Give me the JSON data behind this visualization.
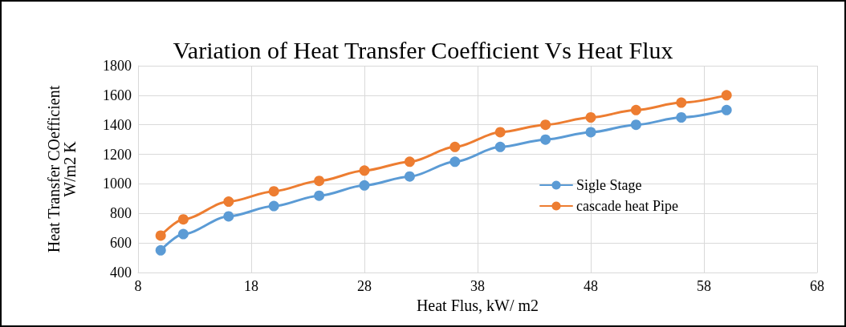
{
  "chart_data": {
    "type": "line",
    "title": "Variation of Heat Transfer Coefficient Vs Heat Flux",
    "xlabel": "Heat Flus, kW/ m2",
    "ylabel": "Heat Transfer COefficient\nW/m2 K",
    "x": [
      10,
      12,
      16,
      20,
      24,
      28,
      32,
      36,
      40,
      44,
      48,
      52,
      56,
      60
    ],
    "series": [
      {
        "name": "Sigle Stage",
        "color": "#5b9bd5",
        "values": [
          550,
          660,
          780,
          850,
          920,
          990,
          1050,
          1150,
          1250,
          1300,
          1350,
          1400,
          1450,
          1500
        ]
      },
      {
        "name": "cascade heat Pipe",
        "color": "#ed7d31",
        "values": [
          650,
          760,
          880,
          950,
          1020,
          1090,
          1150,
          1250,
          1350,
          1400,
          1450,
          1500,
          1550,
          1600
        ]
      }
    ],
    "xlim": [
      8,
      68
    ],
    "xticks": [
      8,
      18,
      28,
      38,
      48,
      58,
      68
    ],
    "ylim": [
      400,
      1800
    ],
    "yticks": [
      400,
      600,
      800,
      1000,
      1200,
      1400,
      1600,
      1800
    ],
    "grid": true,
    "legend": "right",
    "marker": "circle",
    "line_style": "solid"
  }
}
